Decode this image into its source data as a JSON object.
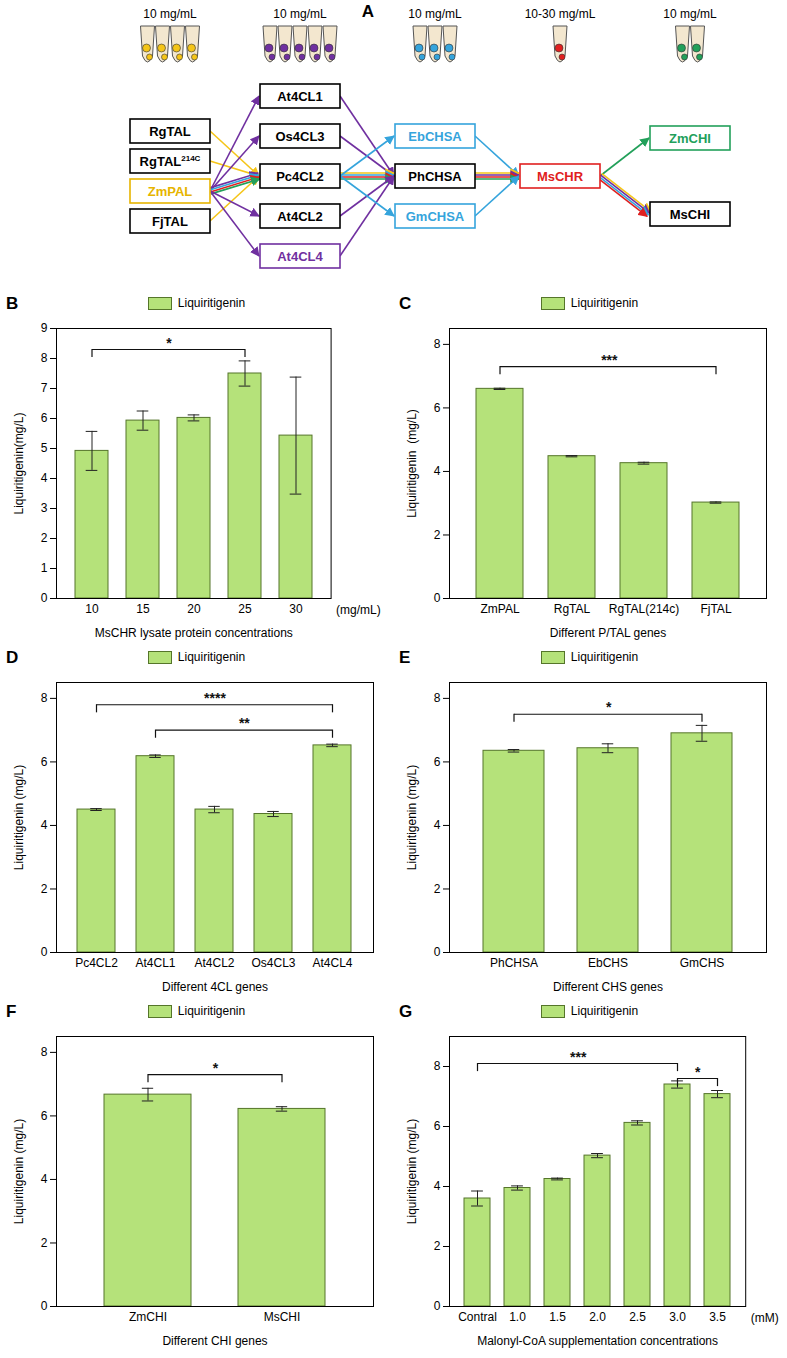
{
  "diagram": {
    "letter": "A",
    "columns": [
      {
        "concentration": "10 mg/mL",
        "color": "#f5c518",
        "nodes": [
          {
            "label": "RgTAL"
          },
          {
            "label": "RgTAL",
            "sup": "214C"
          },
          {
            "label": "ZmPAL",
            "color": "#e6b400"
          },
          {
            "label": "FjTAL"
          }
        ]
      },
      {
        "concentration": "10 mg/mL",
        "color": "#7030a0",
        "nodes": [
          {
            "label": "At4CL1"
          },
          {
            "label": "Os4CL3"
          },
          {
            "label": "Pc4CL2"
          },
          {
            "label": "At4CL2"
          },
          {
            "label": "At4CL4",
            "color": "#7030a0"
          }
        ]
      },
      {
        "concentration": "10 mg/mL",
        "color": "#35a4dc",
        "nodes": [
          {
            "label": "EbCHSA",
            "color": "#35a4dc"
          },
          {
            "label": "PhCHSA"
          },
          {
            "label": "GmCHSA",
            "color": "#35a4dc"
          }
        ]
      },
      {
        "concentration": "10-30  mg/mL",
        "color": "#e02020",
        "nodes": [
          {
            "label": "MsCHR",
            "color": "#e02020"
          }
        ]
      },
      {
        "concentration": "10 mg/mL",
        "color": "#22a05a",
        "nodes": [
          {
            "label": "ZmCHI",
            "color": "#22a05a"
          },
          {
            "label": "MsCHI"
          }
        ]
      }
    ],
    "edges": [
      {
        "from": "RgTAL",
        "to": "Pc4CL2",
        "colors": [
          "#f5c518"
        ]
      },
      {
        "from": "RgTAL214C",
        "to": "Pc4CL2",
        "colors": [
          "#f5c518"
        ]
      },
      {
        "from": "FjTAL",
        "to": "Pc4CL2",
        "colors": [
          "#f5c518"
        ]
      },
      {
        "from": "ZmPAL",
        "to": "At4CL1",
        "colors": [
          "#7030a0"
        ]
      },
      {
        "from": "ZmPAL",
        "to": "Os4CL3",
        "colors": [
          "#7030a0"
        ]
      },
      {
        "from": "ZmPAL",
        "to": "Pc4CL2",
        "colors": [
          "#7030a0",
          "#35a4dc",
          "#e02020",
          "#22a05a"
        ]
      },
      {
        "from": "ZmPAL",
        "to": "At4CL2",
        "colors": [
          "#7030a0"
        ]
      },
      {
        "from": "ZmPAL",
        "to": "At4CL4",
        "colors": [
          "#7030a0"
        ]
      },
      {
        "from": "At4CL1",
        "to": "PhCHSA",
        "colors": [
          "#7030a0"
        ]
      },
      {
        "from": "Os4CL3",
        "to": "PhCHSA",
        "colors": [
          "#7030a0"
        ]
      },
      {
        "from": "Pc4CL2",
        "to": "PhCHSA",
        "colors": [
          "#f5c518",
          "#35a4dc",
          "#e02020",
          "#22a05a"
        ]
      },
      {
        "from": "At4CL2",
        "to": "PhCHSA",
        "colors": [
          "#7030a0"
        ]
      },
      {
        "from": "At4CL4",
        "to": "PhCHSA",
        "colors": [
          "#7030a0"
        ]
      },
      {
        "from": "Pc4CL2",
        "to": "EbCHSA",
        "colors": [
          "#35a4dc"
        ]
      },
      {
        "from": "Pc4CL2",
        "to": "GmCHSA",
        "colors": [
          "#35a4dc"
        ]
      },
      {
        "from": "EbCHSA",
        "to": "MsCHR",
        "colors": [
          "#35a4dc"
        ]
      },
      {
        "from": "PhCHSA",
        "to": "MsCHR",
        "colors": [
          "#f5c518",
          "#7030a0",
          "#e02020",
          "#22a05a"
        ]
      },
      {
        "from": "GmCHSA",
        "to": "MsCHR",
        "colors": [
          "#35a4dc"
        ]
      },
      {
        "from": "MsCHR",
        "to": "ZmCHI",
        "colors": [
          "#22a05a"
        ]
      },
      {
        "from": "MsCHR",
        "to": "MsCHI",
        "colors": [
          "#f5c518",
          "#7030a0",
          "#35a4dc",
          "#e02020"
        ]
      }
    ]
  },
  "chart_data": [
    {
      "panel": "B",
      "type": "bar",
      "categories": [
        "10",
        "15",
        "20",
        "25",
        "30"
      ],
      "series": [
        {
          "name": "Liquiritigenin",
          "color": "#b5e27a",
          "values": [
            4.92,
            5.93,
            6.02,
            7.5,
            5.43
          ],
          "errors": [
            0.65,
            0.32,
            0.1,
            0.42,
            1.95
          ]
        }
      ],
      "xlabel": "MsCHR lysate protein concentrations",
      "x_unit": "(mg/mL)",
      "ylabel": "Liquiritigenin(mg/L)",
      "ylim": [
        0,
        9
      ],
      "yticks": [
        0,
        1,
        2,
        3,
        4,
        5,
        6,
        7,
        8,
        9
      ],
      "grid": false,
      "legend": "top",
      "significance": [
        {
          "from": "10",
          "to": "25",
          "label": "*",
          "y": 8.3
        }
      ]
    },
    {
      "panel": "C",
      "type": "bar",
      "categories": [
        "ZmPAL",
        "RgTAL",
        "RgTAL(214c)",
        "FjTAL"
      ],
      "series": [
        {
          "name": "Liquiritigenin",
          "color": "#b5e27a",
          "values": [
            6.6,
            4.48,
            4.26,
            3.02
          ],
          "errors": [
            0.02,
            0.02,
            0.03,
            0.02
          ]
        }
      ],
      "xlabel": "Different P/TAL genes",
      "ylabel": "Liquiritigenin  (mg/L)",
      "ylim": [
        0,
        8.5
      ],
      "yticks": [
        0,
        2,
        4,
        6,
        8
      ],
      "grid": false,
      "legend": "top",
      "significance": [
        {
          "from": "ZmPAL",
          "to": "FjTAL",
          "label": "***",
          "y": 7.3
        }
      ]
    },
    {
      "panel": "D",
      "type": "bar",
      "categories": [
        "Pc4CL2",
        "At4CL1",
        "At4CL2",
        "Os4CL3",
        "At4CL4"
      ],
      "series": [
        {
          "name": "Liquiritigenin",
          "color": "#b5e27a",
          "values": [
            4.5,
            6.18,
            4.5,
            4.36,
            6.52
          ],
          "errors": [
            0.03,
            0.04,
            0.1,
            0.08,
            0.04
          ]
        }
      ],
      "xlabel": "Different 4CL genes",
      "ylabel": "Liquiritigenin (mg/L)",
      "ylim": [
        0,
        8.5
      ],
      "yticks": [
        0,
        2,
        4,
        6,
        8
      ],
      "grid": false,
      "legend": "top",
      "significance": [
        {
          "from": "Pc4CL2",
          "to": "At4CL4",
          "label": "****",
          "y": 7.8
        },
        {
          "from": "At4CL1",
          "to": "At4CL4",
          "label": "**",
          "y": 7.0
        }
      ]
    },
    {
      "panel": "E",
      "type": "bar",
      "categories": [
        "PhCHSA",
        "EbCHS",
        "GmCHS"
      ],
      "series": [
        {
          "name": "Liquiritigenin",
          "color": "#b5e27a",
          "values": [
            6.35,
            6.43,
            6.9
          ],
          "errors": [
            0.04,
            0.14,
            0.25
          ]
        }
      ],
      "xlabel": "Different CHS genes",
      "ylabel": "Liquiritigenin (mg/L)",
      "ylim": [
        0,
        8.5
      ],
      "yticks": [
        0,
        2,
        4,
        6,
        8
      ],
      "grid": false,
      "legend": "top",
      "significance": [
        {
          "from": "PhCHSA",
          "to": "GmCHS",
          "label": "*",
          "y": 7.5
        }
      ]
    },
    {
      "panel": "F",
      "type": "bar",
      "categories": [
        "ZmCHI",
        "MsCHI"
      ],
      "series": [
        {
          "name": "Liquiritigenin",
          "color": "#b5e27a",
          "values": [
            6.67,
            6.22
          ],
          "errors": [
            0.2,
            0.07
          ]
        }
      ],
      "xlabel": "Different CHI genes",
      "ylabel": "Liquiritigenin (mg/L)",
      "ylim": [
        0,
        8.5
      ],
      "yticks": [
        0,
        2,
        4,
        6,
        8
      ],
      "grid": false,
      "legend": "top",
      "significance": [
        {
          "from": "ZmCHI",
          "to": "MsCHI",
          "label": "*",
          "y": 7.3
        }
      ]
    },
    {
      "panel": "G",
      "type": "bar",
      "categories": [
        "Contral",
        "1.0",
        "1.5",
        "2.0",
        "2.5",
        "3.0",
        "3.5"
      ],
      "series": [
        {
          "name": "Liquiritigenin",
          "color": "#b5e27a",
          "values": [
            3.6,
            3.95,
            4.25,
            5.03,
            6.12,
            7.4,
            7.08
          ],
          "errors": [
            0.25,
            0.07,
            0.03,
            0.07,
            0.07,
            0.12,
            0.12
          ]
        }
      ],
      "xlabel": "Malonyl-CoA supplementation concentrations",
      "x_unit": "(mM)",
      "ylabel": "Liquiritigenin (mg/L)",
      "ylim": [
        0,
        9
      ],
      "yticks": [
        0,
        2,
        4,
        6,
        8
      ],
      "grid": false,
      "legend": "top",
      "significance": [
        {
          "from": "Contral",
          "to": "3.0",
          "label": "***",
          "y": 8.1
        },
        {
          "from": "3.0",
          "to": "3.5",
          "label": "*",
          "y": 7.6
        }
      ]
    }
  ]
}
